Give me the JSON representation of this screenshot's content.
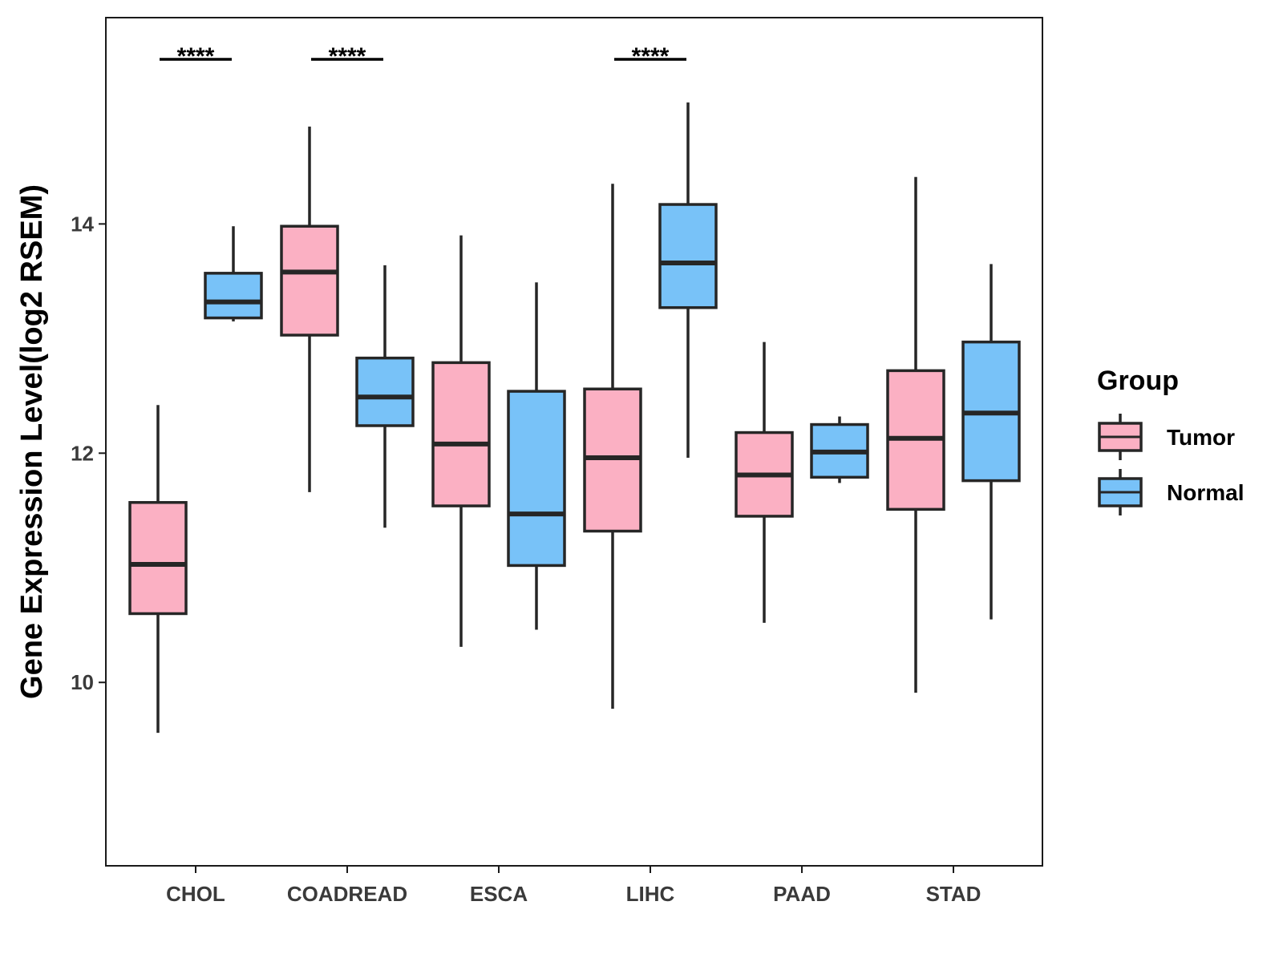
{
  "chart_data": {
    "type": "boxplot",
    "title": "",
    "xlabel": "",
    "ylabel": "Gene Expression Level(log2 RSEM)",
    "ylim": [
      8.4,
      15.8
    ],
    "yticks": [
      10,
      12,
      14
    ],
    "categories": [
      "CHOL",
      "COADREAD",
      "ESCA",
      "LIHC",
      "PAAD",
      "STAD"
    ],
    "legend": {
      "title": "Group",
      "position": "right"
    },
    "series": [
      {
        "name": "Tumor",
        "color": "#fbb0c3",
        "boxes": [
          {
            "category": "CHOL",
            "whisker_low": 9.56,
            "q1": 10.6,
            "median": 11.03,
            "q3": 11.57,
            "whisker_high": 12.42
          },
          {
            "category": "COADREAD",
            "whisker_low": 11.66,
            "q1": 13.03,
            "median": 13.58,
            "q3": 13.98,
            "whisker_high": 14.85
          },
          {
            "category": "ESCA",
            "whisker_low": 10.31,
            "q1": 11.54,
            "median": 12.08,
            "q3": 12.79,
            "whisker_high": 13.9
          },
          {
            "category": "LIHC",
            "whisker_low": 9.77,
            "q1": 11.32,
            "median": 11.96,
            "q3": 12.56,
            "whisker_high": 14.35
          },
          {
            "category": "PAAD",
            "whisker_low": 10.52,
            "q1": 11.45,
            "median": 11.81,
            "q3": 12.18,
            "whisker_high": 12.97
          },
          {
            "category": "STAD",
            "whisker_low": 9.91,
            "q1": 11.51,
            "median": 12.13,
            "q3": 12.72,
            "whisker_high": 14.41
          }
        ]
      },
      {
        "name": "Normal",
        "color": "#78c2f8",
        "boxes": [
          {
            "category": "CHOL",
            "whisker_low": 13.15,
            "q1": 13.18,
            "median": 13.32,
            "q3": 13.57,
            "whisker_high": 13.98
          },
          {
            "category": "COADREAD",
            "whisker_low": 11.35,
            "q1": 12.24,
            "median": 12.49,
            "q3": 12.83,
            "whisker_high": 13.64
          },
          {
            "category": "ESCA",
            "whisker_low": 10.46,
            "q1": 11.02,
            "median": 11.47,
            "q3": 12.54,
            "whisker_high": 13.49
          },
          {
            "category": "LIHC",
            "whisker_low": 11.96,
            "q1": 13.27,
            "median": 13.66,
            "q3": 14.17,
            "whisker_high": 15.06
          },
          {
            "category": "PAAD",
            "whisker_low": 11.74,
            "q1": 11.79,
            "median": 12.01,
            "q3": 12.25,
            "whisker_high": 12.32
          },
          {
            "category": "STAD",
            "whisker_low": 10.55,
            "q1": 11.76,
            "median": 12.35,
            "q3": 12.97,
            "whisker_high": 13.65
          }
        ]
      }
    ],
    "significance": [
      {
        "category": "CHOL",
        "label": "****"
      },
      {
        "category": "COADREAD",
        "label": "****"
      },
      {
        "category": "LIHC",
        "label": "****"
      }
    ]
  }
}
